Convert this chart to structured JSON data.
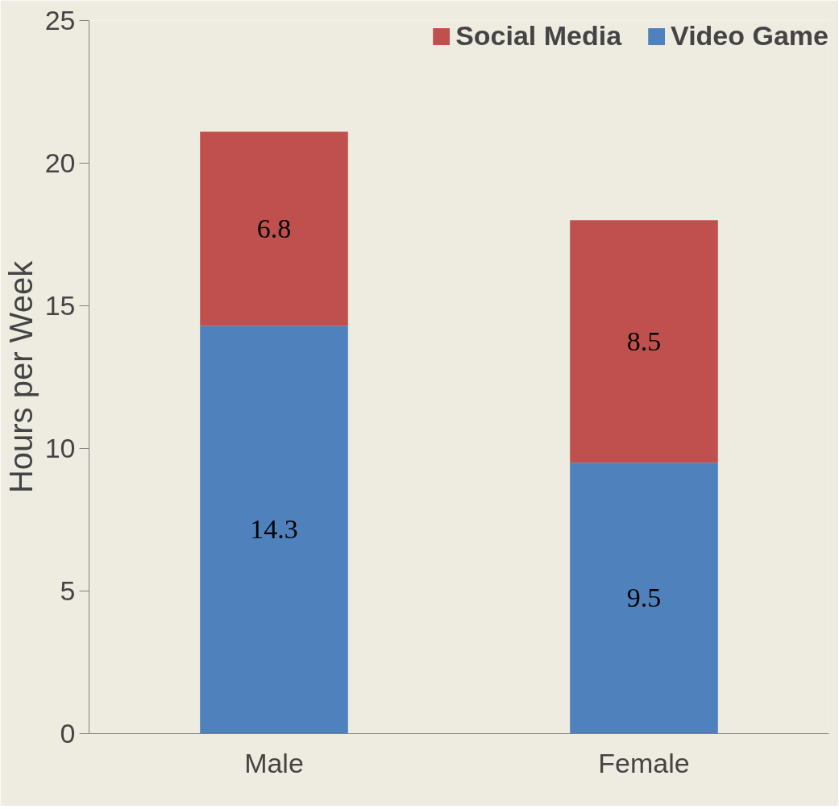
{
  "chart_data": {
    "type": "bar",
    "stacked": true,
    "ylabel": "Hours per Week",
    "categories": [
      "Male",
      "Female"
    ],
    "series": [
      {
        "name": "Video Game",
        "color": "#4f81bd",
        "values": [
          14.3,
          9.5
        ]
      },
      {
        "name": "Social Media",
        "color": "#c0504d",
        "values": [
          6.8,
          8.5
        ]
      }
    ],
    "ylim": [
      0,
      25
    ],
    "yticks": [
      0,
      5,
      10,
      15,
      20,
      25
    ],
    "grid": false,
    "legend": "top right",
    "data_labels": true
  }
}
